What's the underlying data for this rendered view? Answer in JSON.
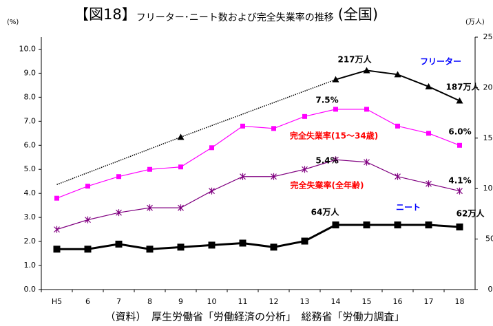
{
  "chart_data": {
    "type": "line",
    "title_prefix": "【図18】",
    "title": "フリーター･ニート数および完全失業率の推移",
    "title_suffix": "(全国)",
    "y_unit": "(%)",
    "y2_unit": "(万人)",
    "source": "（資料）　厚生労働省「労働経済の分析」　総務省「労働力調査」",
    "categories": [
      "H5",
      "6",
      "7",
      "8",
      "9",
      "10",
      "11",
      "12",
      "13",
      "14",
      "15",
      "16",
      "17",
      "18"
    ],
    "ylim": [
      0,
      10.5
    ],
    "yticks": [
      {
        "value": 0,
        "label": "0.0"
      },
      {
        "value": 1,
        "label": "1.0"
      },
      {
        "value": 2,
        "label": "2.0"
      },
      {
        "value": 3,
        "label": "3.0"
      },
      {
        "value": 4,
        "label": "4.0"
      },
      {
        "value": 5,
        "label": "5.0"
      },
      {
        "value": 6,
        "label": "6.0"
      },
      {
        "value": 7,
        "label": "7.0"
      },
      {
        "value": 8,
        "label": "8.0"
      },
      {
        "value": 9,
        "label": "9.0"
      },
      {
        "value": 10,
        "label": "10.0"
      }
    ],
    "y2lim": [
      0,
      250
    ],
    "y2ticks": [
      0,
      50,
      100,
      150,
      200,
      250
    ],
    "grid": false,
    "series": [
      {
        "name": "フリーター",
        "color": "#000000",
        "label_color": "#0000ff",
        "marker": "triangle",
        "width": 2,
        "axis": "y2",
        "connect_gaps": true,
        "values": [
          104,
          null,
          null,
          null,
          151,
          null,
          null,
          null,
          null,
          208,
          217,
          213,
          201,
          187
        ]
      },
      {
        "name": "完全失業率(15～34歳)",
        "color": "#ff00ff",
        "label_color": "#ff0000",
        "marker": "square",
        "width": 1.2,
        "axis": "y",
        "values": [
          3.8,
          4.3,
          4.7,
          5.0,
          5.1,
          5.9,
          6.8,
          6.7,
          7.2,
          7.5,
          7.5,
          6.8,
          6.5,
          6.0
        ]
      },
      {
        "name": "完全失業率(全年齢)",
        "color": "#800080",
        "label_color": "#ff0000",
        "marker": "asterisk",
        "width": 1.2,
        "axis": "y",
        "values": [
          2.5,
          2.9,
          3.2,
          3.4,
          3.4,
          4.1,
          4.7,
          4.7,
          5.0,
          5.4,
          5.3,
          4.7,
          4.4,
          4.1
        ]
      },
      {
        "name": "ニート",
        "color": "#000000",
        "label_color": "#0000ff",
        "marker": "square",
        "width": 3,
        "axis": "y2",
        "values": [
          40,
          40,
          45,
          40,
          42,
          44,
          46,
          42,
          48,
          64,
          64,
          64,
          64,
          62
        ]
      }
    ],
    "annotations": [
      "217万人",
      "187万人",
      "7.5%",
      "6.0%",
      "5.4%",
      "4.1%",
      "64万人",
      "62万人"
    ]
  }
}
